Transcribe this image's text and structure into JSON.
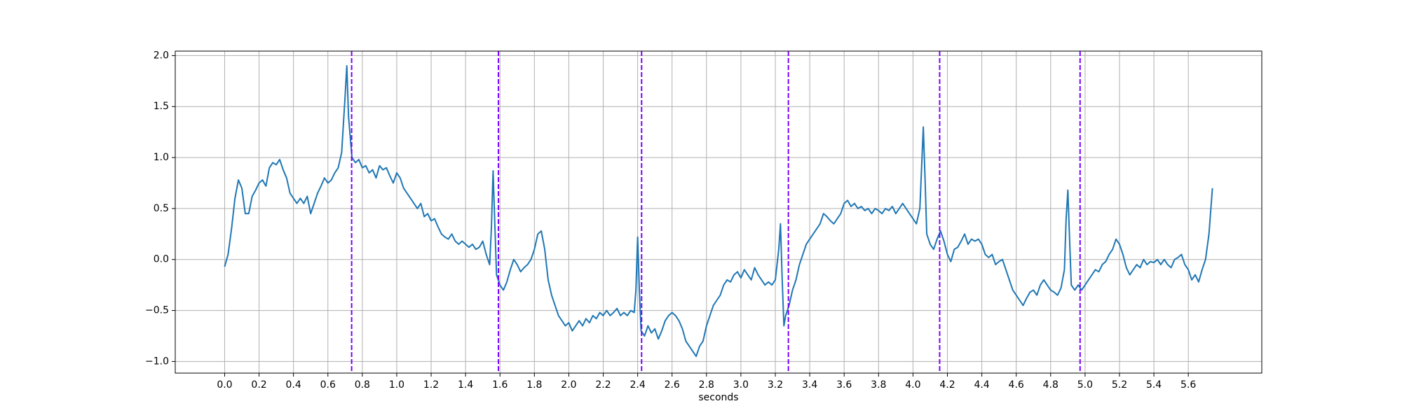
{
  "chart_data": {
    "type": "line",
    "xlabel": "seconds",
    "x": [
      0.0,
      0.02,
      0.04,
      0.06,
      0.08,
      0.1,
      0.12,
      0.14,
      0.16,
      0.18,
      0.2,
      0.22,
      0.24,
      0.26,
      0.28,
      0.3,
      0.32,
      0.34,
      0.36,
      0.38,
      0.4,
      0.42,
      0.44,
      0.46,
      0.48,
      0.5,
      0.52,
      0.54,
      0.56,
      0.58,
      0.6,
      0.62,
      0.64,
      0.66,
      0.68,
      0.7,
      0.71,
      0.72,
      0.74,
      0.76,
      0.78,
      0.8,
      0.82,
      0.84,
      0.86,
      0.88,
      0.9,
      0.92,
      0.94,
      0.96,
      0.98,
      1.0,
      1.02,
      1.04,
      1.06,
      1.08,
      1.1,
      1.12,
      1.14,
      1.16,
      1.18,
      1.2,
      1.22,
      1.24,
      1.26,
      1.28,
      1.3,
      1.32,
      1.34,
      1.36,
      1.38,
      1.4,
      1.42,
      1.44,
      1.46,
      1.48,
      1.5,
      1.52,
      1.54,
      1.55,
      1.56,
      1.57,
      1.58,
      1.6,
      1.62,
      1.64,
      1.66,
      1.68,
      1.7,
      1.72,
      1.74,
      1.76,
      1.78,
      1.8,
      1.82,
      1.84,
      1.86,
      1.88,
      1.9,
      1.92,
      1.94,
      1.96,
      1.98,
      2.0,
      2.02,
      2.04,
      2.06,
      2.08,
      2.1,
      2.12,
      2.14,
      2.16,
      2.18,
      2.2,
      2.22,
      2.24,
      2.26,
      2.28,
      2.3,
      2.32,
      2.34,
      2.36,
      2.38,
      2.39,
      2.4,
      2.41,
      2.42,
      2.44,
      2.46,
      2.48,
      2.5,
      2.52,
      2.54,
      2.56,
      2.58,
      2.6,
      2.62,
      2.64,
      2.66,
      2.68,
      2.7,
      2.72,
      2.74,
      2.76,
      2.78,
      2.8,
      2.82,
      2.84,
      2.86,
      2.88,
      2.9,
      2.92,
      2.94,
      2.96,
      2.98,
      3.0,
      3.02,
      3.04,
      3.06,
      3.08,
      3.1,
      3.12,
      3.14,
      3.16,
      3.18,
      3.2,
      3.22,
      3.23,
      3.24,
      3.25,
      3.26,
      3.28,
      3.3,
      3.32,
      3.34,
      3.36,
      3.38,
      3.4,
      3.42,
      3.44,
      3.46,
      3.48,
      3.5,
      3.52,
      3.54,
      3.56,
      3.58,
      3.6,
      3.62,
      3.64,
      3.66,
      3.68,
      3.7,
      3.72,
      3.74,
      3.76,
      3.78,
      3.8,
      3.82,
      3.84,
      3.86,
      3.88,
      3.9,
      3.92,
      3.94,
      3.96,
      3.98,
      4.0,
      4.02,
      4.04,
      4.05,
      4.06,
      4.07,
      4.08,
      4.1,
      4.12,
      4.14,
      4.16,
      4.18,
      4.2,
      4.22,
      4.24,
      4.26,
      4.28,
      4.3,
      4.32,
      4.34,
      4.36,
      4.38,
      4.4,
      4.42,
      4.44,
      4.46,
      4.48,
      4.5,
      4.52,
      4.54,
      4.56,
      4.58,
      4.6,
      4.62,
      4.64,
      4.66,
      4.68,
      4.7,
      4.72,
      4.74,
      4.76,
      4.78,
      4.8,
      4.82,
      4.84,
      4.86,
      4.88,
      4.89,
      4.9,
      4.91,
      4.92,
      4.94,
      4.96,
      4.98,
      5.0,
      5.02,
      5.04,
      5.06,
      5.08,
      5.1,
      5.12,
      5.14,
      5.16,
      5.18,
      5.2,
      5.22,
      5.24,
      5.26,
      5.28,
      5.3,
      5.32,
      5.34,
      5.36,
      5.38,
      5.4,
      5.42,
      5.44,
      5.46,
      5.48,
      5.5,
      5.52,
      5.54,
      5.56,
      5.58,
      5.6,
      5.62,
      5.64,
      5.66,
      5.68,
      5.7,
      5.72,
      5.74
    ],
    "series": [
      {
        "color": "#1f77b4",
        "values": [
          -0.07,
          0.05,
          0.3,
          0.6,
          0.78,
          0.7,
          0.45,
          0.45,
          0.62,
          0.68,
          0.75,
          0.78,
          0.72,
          0.9,
          0.95,
          0.93,
          0.98,
          0.88,
          0.8,
          0.65,
          0.6,
          0.55,
          0.6,
          0.55,
          0.62,
          0.45,
          0.55,
          0.65,
          0.72,
          0.8,
          0.75,
          0.78,
          0.85,
          0.9,
          1.05,
          1.6,
          1.9,
          1.4,
          1.0,
          0.95,
          0.98,
          0.9,
          0.92,
          0.85,
          0.88,
          0.8,
          0.92,
          0.88,
          0.9,
          0.82,
          0.75,
          0.85,
          0.8,
          0.7,
          0.65,
          0.6,
          0.55,
          0.5,
          0.55,
          0.42,
          0.45,
          0.38,
          0.4,
          0.32,
          0.25,
          0.22,
          0.2,
          0.25,
          0.18,
          0.15,
          0.18,
          0.15,
          0.12,
          0.15,
          0.1,
          0.12,
          0.18,
          0.05,
          -0.05,
          0.3,
          0.87,
          0.35,
          -0.15,
          -0.25,
          -0.3,
          -0.22,
          -0.1,
          0.0,
          -0.05,
          -0.12,
          -0.08,
          -0.05,
          0.0,
          0.1,
          0.25,
          0.28,
          0.1,
          -0.2,
          -0.35,
          -0.45,
          -0.55,
          -0.6,
          -0.65,
          -0.62,
          -0.7,
          -0.65,
          -0.6,
          -0.65,
          -0.58,
          -0.62,
          -0.55,
          -0.58,
          -0.52,
          -0.55,
          -0.5,
          -0.55,
          -0.52,
          -0.48,
          -0.55,
          -0.52,
          -0.55,
          -0.5,
          -0.52,
          -0.3,
          0.22,
          -0.3,
          -0.7,
          -0.75,
          -0.65,
          -0.72,
          -0.68,
          -0.78,
          -0.7,
          -0.6,
          -0.55,
          -0.52,
          -0.55,
          -0.6,
          -0.68,
          -0.8,
          -0.85,
          -0.9,
          -0.95,
          -0.85,
          -0.8,
          -0.65,
          -0.55,
          -0.45,
          -0.4,
          -0.35,
          -0.25,
          -0.2,
          -0.22,
          -0.15,
          -0.12,
          -0.18,
          -0.1,
          -0.15,
          -0.2,
          -0.08,
          -0.15,
          -0.2,
          -0.25,
          -0.22,
          -0.25,
          -0.2,
          0.1,
          0.35,
          -0.2,
          -0.65,
          -0.55,
          -0.45,
          -0.3,
          -0.2,
          -0.05,
          0.05,
          0.15,
          0.2,
          0.25,
          0.3,
          0.35,
          0.45,
          0.42,
          0.38,
          0.35,
          0.4,
          0.45,
          0.55,
          0.58,
          0.52,
          0.55,
          0.5,
          0.52,
          0.48,
          0.5,
          0.45,
          0.5,
          0.48,
          0.45,
          0.5,
          0.48,
          0.52,
          0.45,
          0.5,
          0.55,
          0.5,
          0.45,
          0.4,
          0.35,
          0.5,
          0.9,
          1.3,
          0.8,
          0.25,
          0.15,
          0.1,
          0.2,
          0.28,
          0.18,
          0.05,
          -0.02,
          0.1,
          0.12,
          0.18,
          0.25,
          0.15,
          0.2,
          0.18,
          0.2,
          0.15,
          0.05,
          0.02,
          0.05,
          -0.05,
          -0.02,
          0.0,
          -0.1,
          -0.2,
          -0.3,
          -0.35,
          -0.4,
          -0.45,
          -0.38,
          -0.32,
          -0.3,
          -0.35,
          -0.25,
          -0.2,
          -0.25,
          -0.3,
          -0.32,
          -0.35,
          -0.28,
          -0.1,
          0.4,
          0.68,
          0.2,
          -0.25,
          -0.3,
          -0.25,
          -0.3,
          -0.25,
          -0.2,
          -0.15,
          -0.1,
          -0.12,
          -0.05,
          -0.02,
          0.05,
          0.1,
          0.2,
          0.15,
          0.05,
          -0.08,
          -0.15,
          -0.1,
          -0.05,
          -0.08,
          0.0,
          -0.05,
          -0.02,
          -0.03,
          0.0,
          -0.05,
          0.0,
          -0.05,
          -0.08,
          0.0,
          0.02,
          0.05,
          -0.05,
          -0.1,
          -0.2,
          -0.15,
          -0.22,
          -0.1,
          0.0,
          0.25,
          0.7
        ]
      }
    ],
    "vlines": {
      "color": "#7a00ff",
      "values": [
        0.738,
        1.591,
        2.423,
        3.276,
        4.155,
        4.971
      ]
    },
    "xlim": [
      -0.287,
      6.027
    ],
    "ylim": [
      -1.114,
      2.044
    ],
    "xticks": [
      {
        "value": 0,
        "label": "0.0"
      },
      0.2,
      0.4,
      0.6,
      0.8,
      {
        "value": 1,
        "label": "1.0"
      },
      1.2,
      1.4,
      1.6,
      1.8,
      {
        "value": 2,
        "label": "2.0"
      },
      2.2,
      2.4,
      2.6,
      2.8,
      {
        "value": 3,
        "label": "3.0"
      },
      3.2,
      3.4,
      3.6,
      3.8,
      {
        "value": 4,
        "label": "4.0"
      },
      4.2,
      4.4,
      4.6,
      4.8,
      {
        "value": 5,
        "label": "5.0"
      },
      5.2,
      5.4,
      5.6
    ],
    "yticks": [
      {
        "value": -1,
        "label": "−1.0"
      },
      {
        "value": -0.5,
        "label": "−0.5"
      },
      {
        "value": 0,
        "label": "0.0"
      },
      0.5,
      {
        "value": 1,
        "label": "1.0"
      },
      1.5,
      {
        "value": 2,
        "label": "2.0"
      }
    ],
    "grid": true
  }
}
